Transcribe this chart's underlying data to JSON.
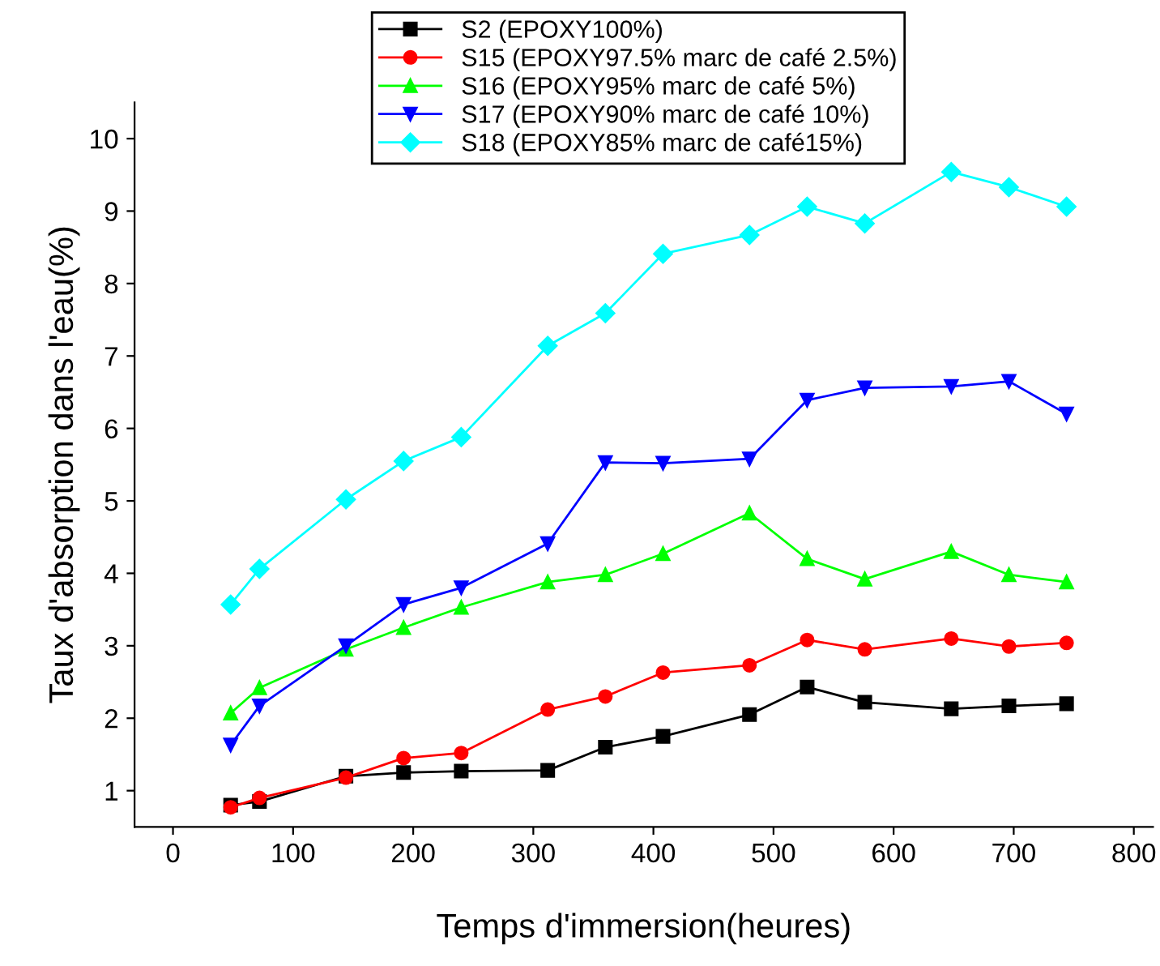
{
  "chart_data": {
    "type": "line",
    "xlabel": "Temps d'immersion(heures)",
    "ylabel": "Taux d'absorption dans l'eau(%)",
    "x": [
      48,
      72,
      144,
      192,
      240,
      312,
      360,
      408,
      480,
      528,
      576,
      648,
      696,
      744
    ],
    "series": [
      {
        "name": "S2 (EPOXY100%)",
        "color": "#000000",
        "marker": "square",
        "values": [
          0.8,
          0.85,
          1.2,
          1.25,
          1.27,
          1.28,
          1.6,
          1.75,
          2.05,
          2.43,
          2.22,
          2.13,
          2.17,
          2.2
        ]
      },
      {
        "name": "S15 (EPOXY97.5% marc de café 2.5%)",
        "color": "#ff0000",
        "marker": "circle",
        "values": [
          0.77,
          0.9,
          1.18,
          1.45,
          1.52,
          2.12,
          2.3,
          2.63,
          2.73,
          3.08,
          2.95,
          3.1,
          2.99,
          3.04
        ]
      },
      {
        "name": "S16 (EPOXY95% marc de café 5%)",
        "color": "#00ff00",
        "marker": "triangle",
        "values": [
          2.07,
          2.42,
          2.95,
          3.25,
          3.53,
          3.88,
          3.98,
          4.27,
          4.83,
          4.2,
          3.92,
          4.3,
          3.98,
          3.88
        ]
      },
      {
        "name": "S17 (EPOXY90% marc de café 10%)",
        "color": "#0000ff",
        "marker": "triangle_down",
        "values": [
          1.63,
          2.17,
          3.0,
          3.57,
          3.8,
          4.41,
          5.53,
          5.52,
          5.58,
          6.39,
          6.56,
          6.58,
          6.65,
          6.2
        ]
      },
      {
        "name": "S18 (EPOXY85% marc de café15%)",
        "color": "#00ffff",
        "marker": "diamond",
        "values": [
          3.57,
          4.06,
          5.02,
          5.55,
          5.88,
          7.14,
          7.59,
          8.41,
          8.67,
          9.06,
          8.83,
          9.54,
          9.33,
          9.06
        ]
      }
    ],
    "xlim": [
      -32,
      816
    ],
    "xticks": [
      0,
      100,
      200,
      300,
      400,
      500,
      600,
      700,
      800
    ],
    "ylim": [
      0.5,
      10.5
    ],
    "yticks": [
      1,
      2,
      3,
      4,
      5,
      6,
      7,
      8,
      9,
      10
    ],
    "grid": false,
    "legend": "top left",
    "line_style": "solid"
  }
}
